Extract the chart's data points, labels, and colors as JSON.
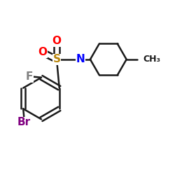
{
  "background_color": "#ffffff",
  "bond_color": "#1a1a1a",
  "atom_colors": {
    "O": "#ff0000",
    "S": "#b8860b",
    "N": "#0000ff",
    "F": "#808080",
    "Br": "#800080",
    "C": "#1a1a1a"
  },
  "figsize": [
    2.5,
    2.5
  ],
  "dpi": 100
}
